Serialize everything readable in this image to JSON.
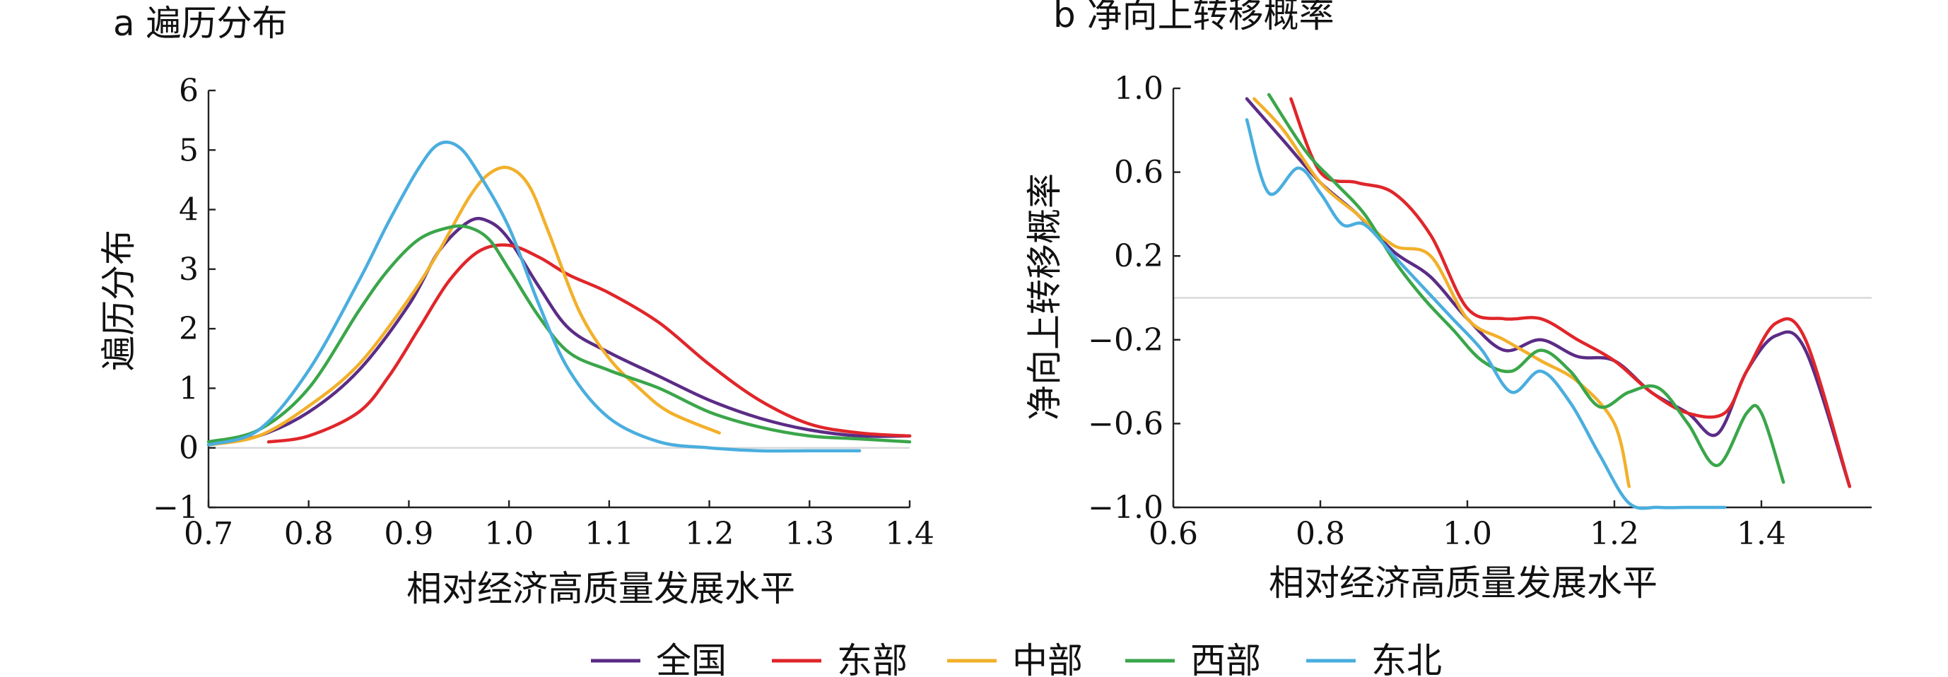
{
  "chart_data": [
    {
      "type": "line",
      "title": "a 遍历分布",
      "xlabel": "相对经济高质量发展水平",
      "ylabel": "遍历分布",
      "xlim": [
        0.7,
        1.4
      ],
      "ylim": [
        -1,
        6
      ],
      "xticks": [
        "0.7",
        "0.8",
        "0.9",
        "1.0",
        "1.1",
        "1.2",
        "1.3",
        "1.4"
      ],
      "yticks": [
        "−1",
        "0",
        "1",
        "2",
        "3",
        "4",
        "5",
        "6"
      ],
      "zero_line": 0,
      "series": [
        {
          "name": "全国",
          "color": "#5b2c86",
          "x": [
            0.7,
            0.75,
            0.8,
            0.85,
            0.9,
            0.93,
            0.96,
            0.98,
            1.0,
            1.03,
            1.06,
            1.1,
            1.15,
            1.2,
            1.25,
            1.3,
            1.35,
            1.4
          ],
          "y": [
            0.05,
            0.2,
            0.6,
            1.3,
            2.4,
            3.3,
            3.8,
            3.8,
            3.5,
            2.7,
            2.0,
            1.6,
            1.2,
            0.8,
            0.5,
            0.3,
            0.2,
            0.2
          ]
        },
        {
          "name": "东部",
          "color": "#e0262a",
          "x": [
            0.76,
            0.8,
            0.85,
            0.88,
            0.91,
            0.94,
            0.97,
            1.0,
            1.03,
            1.06,
            1.1,
            1.15,
            1.2,
            1.25,
            1.3,
            1.35,
            1.4
          ],
          "y": [
            0.1,
            0.2,
            0.6,
            1.2,
            2.0,
            2.8,
            3.3,
            3.4,
            3.2,
            2.9,
            2.6,
            2.1,
            1.4,
            0.8,
            0.4,
            0.25,
            0.2
          ]
        },
        {
          "name": "中部",
          "color": "#f2b02a",
          "x": [
            0.7,
            0.75,
            0.8,
            0.85,
            0.9,
            0.93,
            0.96,
            0.98,
            1.0,
            1.02,
            1.04,
            1.07,
            1.1,
            1.13,
            1.16,
            1.21
          ],
          "y": [
            0.05,
            0.2,
            0.7,
            1.4,
            2.5,
            3.3,
            4.2,
            4.6,
            4.7,
            4.4,
            3.6,
            2.3,
            1.5,
            1.0,
            0.6,
            0.25
          ]
        },
        {
          "name": "西部",
          "color": "#3aa64a",
          "x": [
            0.7,
            0.75,
            0.8,
            0.85,
            0.88,
            0.91,
            0.94,
            0.96,
            0.98,
            1.0,
            1.03,
            1.06,
            1.1,
            1.15,
            1.2,
            1.25,
            1.3,
            1.35,
            1.4
          ],
          "y": [
            0.1,
            0.3,
            1.0,
            2.3,
            3.0,
            3.5,
            3.7,
            3.7,
            3.5,
            3.0,
            2.2,
            1.6,
            1.3,
            1.0,
            0.6,
            0.35,
            0.2,
            0.15,
            0.1
          ]
        },
        {
          "name": "东北",
          "color": "#4aaede",
          "x": [
            0.7,
            0.75,
            0.8,
            0.85,
            0.88,
            0.91,
            0.93,
            0.95,
            0.97,
            1.0,
            1.03,
            1.06,
            1.1,
            1.15,
            1.2,
            1.25,
            1.3,
            1.35
          ],
          "y": [
            0.05,
            0.3,
            1.3,
            2.8,
            3.8,
            4.7,
            5.1,
            5.05,
            4.6,
            3.7,
            2.4,
            1.3,
            0.5,
            0.1,
            0.0,
            -0.05,
            -0.05,
            -0.05
          ]
        }
      ]
    },
    {
      "type": "line",
      "title": "b 净向上转移概率",
      "xlabel": "相对经济高质量发展水平",
      "ylabel": "净向上转移概率",
      "xlim": [
        0.6,
        1.55
      ],
      "ylim": [
        -1.0,
        1.0
      ],
      "xticks": [
        "0.6",
        "0.8",
        "1.0",
        "1.2",
        "1.4"
      ],
      "yticks": [
        "−1.0",
        "−0.6",
        "−0.2",
        "0.2",
        "0.6",
        "1.0"
      ],
      "zero_line": 0,
      "series": [
        {
          "name": "全国",
          "color": "#5b2c86",
          "x": [
            0.7,
            0.75,
            0.8,
            0.85,
            0.9,
            0.95,
            1.0,
            1.05,
            1.1,
            1.15,
            1.2,
            1.25,
            1.3,
            1.34,
            1.38,
            1.42,
            1.46,
            1.52
          ],
          "y": [
            0.95,
            0.75,
            0.55,
            0.4,
            0.22,
            0.1,
            -0.1,
            -0.25,
            -0.2,
            -0.28,
            -0.3,
            -0.45,
            -0.55,
            -0.65,
            -0.35,
            -0.18,
            -0.25,
            -0.9
          ]
        },
        {
          "name": "东部",
          "color": "#e0262a",
          "x": [
            0.76,
            0.8,
            0.85,
            0.9,
            0.95,
            1.0,
            1.05,
            1.1,
            1.15,
            1.2,
            1.25,
            1.3,
            1.35,
            1.38,
            1.42,
            1.46,
            1.52
          ],
          "y": [
            0.95,
            0.6,
            0.55,
            0.5,
            0.3,
            -0.05,
            -0.1,
            -0.1,
            -0.2,
            -0.3,
            -0.45,
            -0.55,
            -0.55,
            -0.35,
            -0.12,
            -0.2,
            -0.9
          ]
        },
        {
          "name": "中部",
          "color": "#f2b02a",
          "x": [
            0.71,
            0.75,
            0.8,
            0.85,
            0.9,
            0.95,
            1.0,
            1.05,
            1.1,
            1.15,
            1.2,
            1.22
          ],
          "y": [
            0.95,
            0.8,
            0.55,
            0.4,
            0.25,
            0.2,
            -0.1,
            -0.2,
            -0.3,
            -0.4,
            -0.6,
            -0.9
          ]
        },
        {
          "name": "西部",
          "color": "#3aa64a",
          "x": [
            0.73,
            0.78,
            0.82,
            0.86,
            0.9,
            0.94,
            0.98,
            1.02,
            1.06,
            1.1,
            1.14,
            1.18,
            1.22,
            1.26,
            1.3,
            1.34,
            1.38,
            1.4,
            1.43
          ],
          "y": [
            0.97,
            0.7,
            0.55,
            0.4,
            0.18,
            0.0,
            -0.15,
            -0.3,
            -0.35,
            -0.25,
            -0.35,
            -0.52,
            -0.45,
            -0.43,
            -0.6,
            -0.8,
            -0.55,
            -0.55,
            -0.88
          ]
        },
        {
          "name": "东北",
          "color": "#4aaede",
          "x": [
            0.7,
            0.73,
            0.77,
            0.8,
            0.83,
            0.86,
            0.9,
            0.94,
            0.98,
            1.02,
            1.06,
            1.1,
            1.14,
            1.18,
            1.22,
            1.26,
            1.3,
            1.35
          ],
          "y": [
            0.85,
            0.5,
            0.62,
            0.5,
            0.35,
            0.35,
            0.2,
            0.05,
            -0.1,
            -0.25,
            -0.45,
            -0.35,
            -0.5,
            -0.75,
            -0.98,
            -1.0,
            -1.0,
            -1.0
          ]
        }
      ]
    }
  ],
  "legend": {
    "placement": "bottom-center",
    "items": [
      {
        "label": "全国",
        "color": "#5b2c86"
      },
      {
        "label": "东部",
        "color": "#e0262a"
      },
      {
        "label": "中部",
        "color": "#f2b02a"
      },
      {
        "label": "西部",
        "color": "#3aa64a"
      },
      {
        "label": "东北",
        "color": "#4aaede"
      }
    ]
  }
}
